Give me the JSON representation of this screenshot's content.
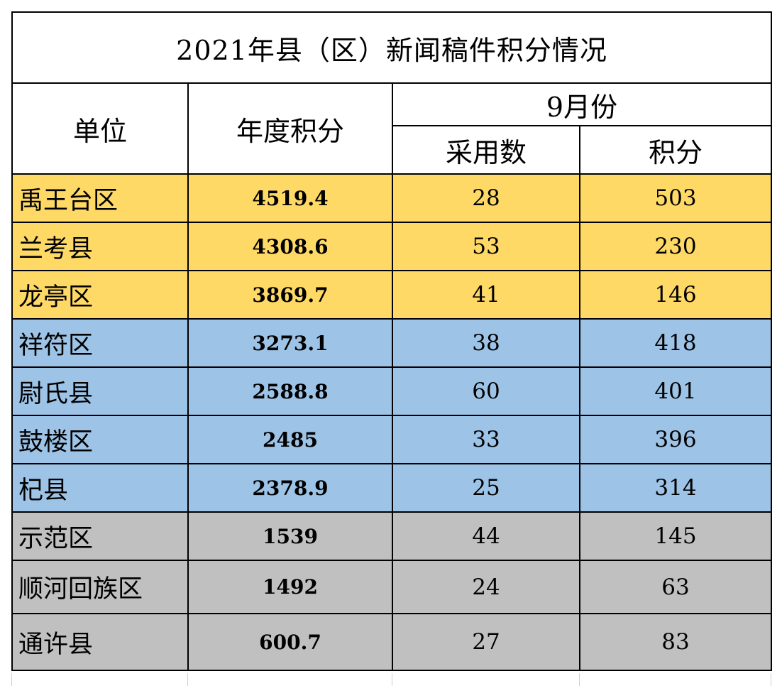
{
  "title": "2021年县（区）新闻稿件积分情况",
  "headers": {
    "unit": "单位",
    "annual_score": "年度积分",
    "month": "9月份",
    "adopted": "采用数",
    "score": "积分"
  },
  "rows": [
    {
      "unit": "禹王台区",
      "annual": "4519.4",
      "adopted": "28",
      "score": "503"
    },
    {
      "unit": "兰考县",
      "annual": "4308.6",
      "adopted": "53",
      "score": "230"
    },
    {
      "unit": "龙亭区",
      "annual": "3869.7",
      "adopted": "41",
      "score": "146"
    },
    {
      "unit": "祥符区",
      "annual": "3273.1",
      "adopted": "38",
      "score": "418"
    },
    {
      "unit": "尉氏县",
      "annual": "2588.8",
      "adopted": "60",
      "score": "401"
    },
    {
      "unit": "鼓楼区",
      "annual": "2485",
      "adopted": "33",
      "score": "396"
    },
    {
      "unit": "杞县",
      "annual": "2378.9",
      "adopted": "25",
      "score": "314"
    },
    {
      "unit": "示范区",
      "annual": "1539",
      "adopted": "44",
      "score": "145"
    },
    {
      "unit": "顺河回族区",
      "annual": "1492",
      "adopted": "24",
      "score": "63"
    },
    {
      "unit": "通许县",
      "annual": "600.7",
      "adopted": "27",
      "score": "83"
    }
  ],
  "colors": {
    "gold": "#ffd966",
    "blue": "#9dc3e6",
    "gray": "#c0c0c0"
  }
}
